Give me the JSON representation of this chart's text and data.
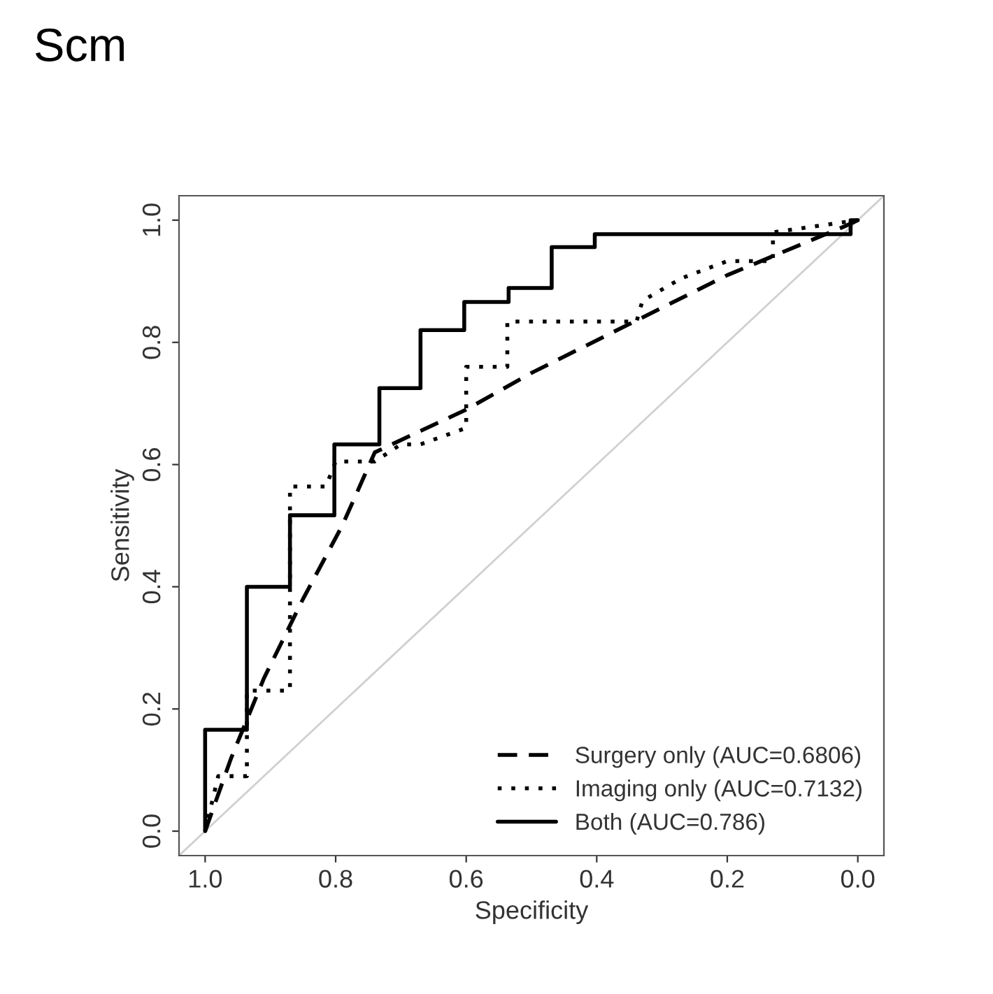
{
  "chart_data": {
    "type": "line",
    "title": "Scm",
    "xlabel": "Specificity",
    "ylabel": "Sensitivity",
    "xlim": [
      1.04,
      -0.04
    ],
    "ylim": [
      -0.04,
      1.04
    ],
    "xticks": [
      {
        "value": 1.0,
        "label": "1.0"
      },
      {
        "value": 0.8,
        "label": "0.8"
      },
      {
        "value": 0.6,
        "label": "0.6"
      },
      {
        "value": 0.4,
        "label": "0.4"
      },
      {
        "value": 0.2,
        "label": "0.2"
      },
      {
        "value": 0.0,
        "label": "0.0"
      }
    ],
    "yticks": [
      {
        "value": 0.0,
        "label": "0.0"
      },
      {
        "value": 0.2,
        "label": "0.2"
      },
      {
        "value": 0.4,
        "label": "0.4"
      },
      {
        "value": 0.6,
        "label": "0.6"
      },
      {
        "value": 0.8,
        "label": "0.8"
      },
      {
        "value": 1.0,
        "label": "1.0"
      }
    ],
    "grid": false,
    "legend": "bottom right",
    "series": [
      {
        "color": "#d0d0d0",
        "line_style": "solid",
        "x": [
          1.04,
          -0.04
        ],
        "values": [
          -0.04,
          1.04
        ]
      },
      {
        "name": "Surgery only (AUC=0.6806)",
        "color": "#000000",
        "line_style": "dashed",
        "x": [
          1.0,
          0.96,
          0.91,
          0.85,
          0.79,
          0.74,
          0.6,
          0.5,
          0.35,
          0.2,
          0.02,
          0.0
        ],
        "values": [
          0.0,
          0.12,
          0.25,
          0.38,
          0.5,
          0.62,
          0.69,
          0.75,
          0.83,
          0.91,
          0.99,
          1.0
        ]
      },
      {
        "name": "Imaging only (AUC=0.7132)",
        "color": "#000000",
        "line_style": "dotted",
        "x": [
          1.0,
          0.98,
          0.936,
          0.936,
          0.87,
          0.87,
          0.815,
          0.8,
          0.74,
          0.7,
          0.67,
          0.6,
          0.6,
          0.537,
          0.537,
          0.339,
          0.33,
          0.27,
          0.2,
          0.13,
          0.13,
          0.0
        ],
        "values": [
          0.0,
          0.09,
          0.09,
          0.23,
          0.23,
          0.564,
          0.564,
          0.605,
          0.605,
          0.633,
          0.633,
          0.66,
          0.76,
          0.76,
          0.834,
          0.834,
          0.868,
          0.905,
          0.933,
          0.933,
          0.98,
          1.0
        ]
      },
      {
        "name": "Both (AUC=0.786)",
        "color": "#000000",
        "line_style": "solid",
        "x": [
          1.0,
          1.0,
          0.936,
          0.936,
          0.87,
          0.87,
          0.802,
          0.802,
          0.733,
          0.733,
          0.67,
          0.67,
          0.603,
          0.603,
          0.535,
          0.535,
          0.469,
          0.469,
          0.403,
          0.403,
          0.011,
          0.011,
          0.0
        ],
        "values": [
          0.0,
          0.166,
          0.166,
          0.4,
          0.4,
          0.517,
          0.517,
          0.633,
          0.633,
          0.725,
          0.725,
          0.82,
          0.82,
          0.866,
          0.866,
          0.889,
          0.889,
          0.956,
          0.956,
          0.977,
          0.977,
          1.0,
          1.0
        ]
      }
    ]
  }
}
